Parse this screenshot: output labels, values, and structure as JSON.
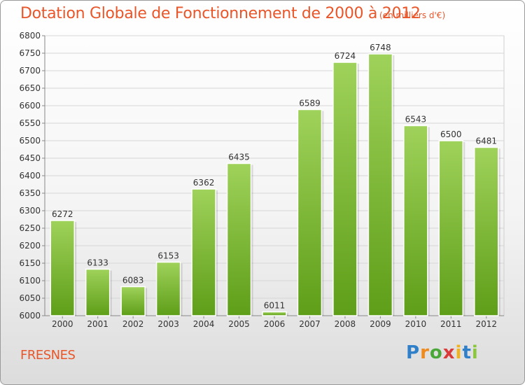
{
  "header": {
    "title": "Dotation Globale de Fonctionnement de 2000 à 2012",
    "unit": "(en milliers d'€)"
  },
  "footer": {
    "place": "FRESNES",
    "logo": "Proxiti"
  },
  "colors": {
    "title": "#e8562a",
    "bar_top": "#9fd25a",
    "bar_bottom": "#5e9e18"
  },
  "chart_data": {
    "type": "bar",
    "title": "Dotation Globale de Fonctionnement de 2000 à 2012",
    "subtitle": "(en milliers d'€)",
    "categories": [
      "2000",
      "2001",
      "2002",
      "2003",
      "2004",
      "2005",
      "2006",
      "2007",
      "2008",
      "2009",
      "2010",
      "2011",
      "2012"
    ],
    "values": [
      6272,
      6133,
      6083,
      6153,
      6362,
      6435,
      6011,
      6589,
      6724,
      6748,
      6543,
      6500,
      6481
    ],
    "ylim": [
      6000,
      6800
    ],
    "yticks": [
      6000,
      6050,
      6100,
      6150,
      6200,
      6250,
      6300,
      6350,
      6400,
      6450,
      6500,
      6550,
      6600,
      6650,
      6700,
      6750,
      6800
    ],
    "xlabel": "",
    "ylabel": "",
    "grid": true,
    "legend": "none"
  }
}
